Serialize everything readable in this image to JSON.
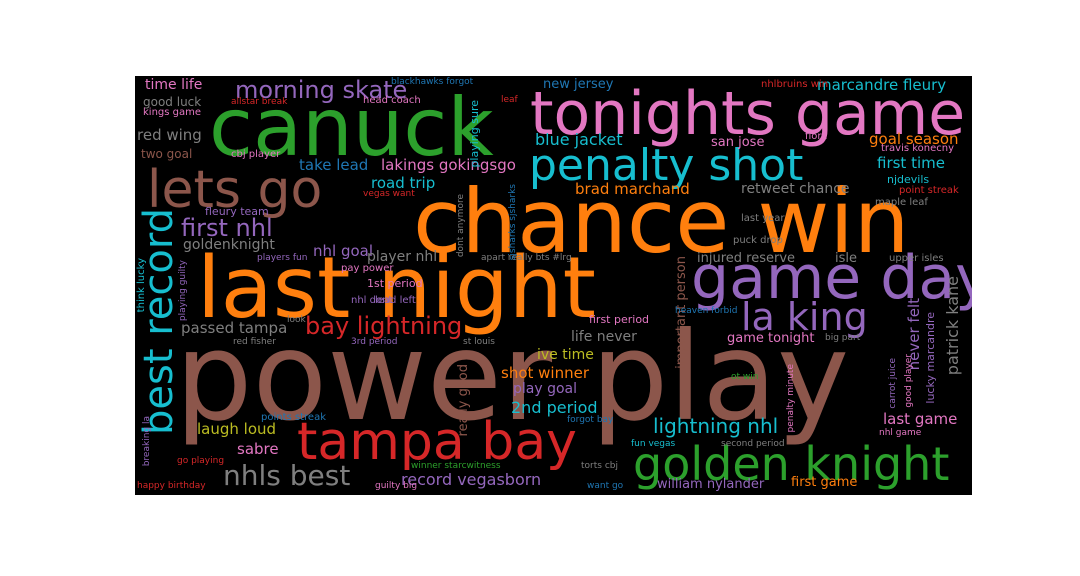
{
  "colors": {
    "blue": "#1f77b4",
    "orange": "#ff7f0e",
    "green": "#2ca02c",
    "red": "#d62728",
    "purple": "#9467bd",
    "brown": "#8c564b",
    "pink": "#e377c2",
    "gray": "#7f7f7f",
    "olive": "#bcbd22",
    "cyan": "#17becf"
  },
  "words": [
    {
      "text": "power play",
      "color": "brown",
      "weight": 1.0
    },
    {
      "text": "chance win",
      "color": "orange",
      "weight": 0.75
    },
    {
      "text": "last night",
      "color": "orange",
      "weight": 0.72
    },
    {
      "text": "canuck",
      "color": "green",
      "weight": 0.68
    },
    {
      "text": "tonights game",
      "color": "pink",
      "weight": 0.55
    },
    {
      "text": "game day",
      "color": "purple",
      "weight": 0.52
    },
    {
      "text": "tampa bay",
      "color": "red",
      "weight": 0.47
    },
    {
      "text": "golden knight",
      "color": "green",
      "weight": 0.46
    },
    {
      "text": "lets go",
      "color": "brown",
      "weight": 0.45
    },
    {
      "text": "best record",
      "color": "cyan",
      "weight": 0.44
    },
    {
      "text": "penalty shot",
      "color": "cyan",
      "weight": 0.42
    },
    {
      "text": "la king",
      "color": "purple",
      "weight": 0.39
    },
    {
      "text": "nhls best",
      "color": "gray",
      "weight": 0.27
    },
    {
      "text": "bay lightning",
      "color": "red",
      "weight": 0.24
    },
    {
      "text": "morning skate",
      "color": "purple",
      "weight": 0.24
    },
    {
      "text": "first nhl",
      "color": "purple",
      "weight": 0.24
    },
    {
      "text": "lightning nhl",
      "color": "cyan",
      "weight": 0.18
    },
    {
      "text": "goal season",
      "color": "orange",
      "weight": 0.14
    },
    {
      "text": "patrick kane",
      "color": "gray",
      "weight": 0.14
    },
    {
      "text": "blue jacket",
      "color": "cyan",
      "weight": 0.14
    },
    {
      "text": "marcandre fleury",
      "color": "cyan",
      "weight": 0.13
    },
    {
      "text": "road trip",
      "color": "cyan",
      "weight": 0.13
    },
    {
      "text": "take lead",
      "color": "blue",
      "weight": 0.13
    },
    {
      "text": "lakings gokingsgo",
      "color": "pink",
      "weight": 0.12
    },
    {
      "text": "record vegasborn",
      "color": "purple",
      "weight": 0.13
    },
    {
      "text": "shot winner",
      "color": "orange",
      "weight": 0.12
    },
    {
      "text": "2nd period",
      "color": "cyan",
      "weight": 0.13
    },
    {
      "text": "passed tampa",
      "color": "gray",
      "weight": 0.12
    },
    {
      "text": "first time",
      "color": "cyan",
      "weight": 0.12
    },
    {
      "text": "last game",
      "color": "pink",
      "weight": 0.12
    },
    {
      "text": "laugh loud",
      "color": "olive",
      "weight": 0.12
    },
    {
      "text": "time life",
      "color": "pink",
      "weight": 0.11
    },
    {
      "text": "red wing",
      "color": "gray",
      "weight": 0.11
    },
    {
      "text": "nhl goal",
      "color": "purple",
      "weight": 0.11
    },
    {
      "text": "sabre",
      "color": "pink",
      "weight": 0.11
    },
    {
      "text": "brad marchand",
      "color": "orange",
      "weight": 0.11
    },
    {
      "text": "retweet chance",
      "color": "gray",
      "weight": 0.11
    },
    {
      "text": "life never",
      "color": "gray",
      "weight": 0.11
    },
    {
      "text": "play goal",
      "color": "purple",
      "weight": 0.11
    },
    {
      "text": "william nylander",
      "color": "purple",
      "weight": 0.1
    },
    {
      "text": "first game",
      "color": "orange",
      "weight": 0.1
    },
    {
      "text": "ive time",
      "color": "olive",
      "weight": 0.1
    },
    {
      "text": "game tonight",
      "color": "pink",
      "weight": 0.1
    },
    {
      "text": "never felt",
      "color": "purple",
      "weight": 0.1
    },
    {
      "text": "player nhl",
      "color": "gray",
      "weight": 0.1
    },
    {
      "text": "goldenknight",
      "color": "gray",
      "weight": 0.1
    },
    {
      "text": "new jersey",
      "color": "blue",
      "weight": 0.09
    },
    {
      "text": "san jose",
      "color": "pink",
      "weight": 0.09
    },
    {
      "text": "injured reserve",
      "color": "gray",
      "weight": 0.09
    },
    {
      "text": "isle",
      "color": "gray",
      "weight": 0.09
    },
    {
      "text": "good luck",
      "color": "gray",
      "weight": 0.09
    },
    {
      "text": "two goal",
      "color": "brown",
      "weight": 0.09
    },
    {
      "text": "really good",
      "color": "brown",
      "weight": 0.09
    },
    {
      "text": "important person",
      "color": "brown",
      "weight": 0.09
    },
    {
      "text": "fleury team",
      "color": "purple",
      "weight": 0.08
    },
    {
      "text": "njdevils",
      "color": "cyan",
      "weight": 0.08
    },
    {
      "text": "1st period",
      "color": "pink",
      "weight": 0.08
    },
    {
      "text": "lucky marcandre",
      "color": "purple",
      "weight": 0.07
    },
    {
      "text": "first period",
      "color": "pink",
      "weight": 0.07
    },
    {
      "text": "kings game",
      "color": "pink",
      "weight": 0.07
    },
    {
      "text": "head coach",
      "color": "pink",
      "weight": 0.07
    },
    {
      "text": "pay power",
      "color": "pink",
      "weight": 0.07
    },
    {
      "text": "nhl dont",
      "color": "purple",
      "weight": 0.07
    },
    {
      "text": "lead left",
      "color": "purple",
      "weight": 0.07
    },
    {
      "text": "points streak",
      "color": "blue",
      "weight": 0.07
    },
    {
      "text": "cbj player",
      "color": "pink",
      "weight": 0.07
    },
    {
      "text": "nhlbruins win",
      "color": "red",
      "weight": 0.07
    },
    {
      "text": "travis konecny",
      "color": "pink",
      "weight": 0.07
    },
    {
      "text": "flore",
      "color": "pink",
      "weight": 0.07
    },
    {
      "text": "point streak",
      "color": "red",
      "weight": 0.07
    },
    {
      "text": "maple leaf",
      "color": "gray",
      "weight": 0.07
    },
    {
      "text": "last year",
      "color": "gray",
      "weight": 0.07
    },
    {
      "text": "puck drop",
      "color": "gray",
      "weight": 0.07
    },
    {
      "text": "upper isles",
      "color": "gray",
      "weight": 0.07
    },
    {
      "text": "blackhawks forgot",
      "color": "blue",
      "weight": 0.07
    },
    {
      "text": "allstar break",
      "color": "red",
      "weight": 0.07
    },
    {
      "text": "leaf",
      "color": "red",
      "weight": 0.07
    },
    {
      "text": "vegas want",
      "color": "red",
      "weight": 0.07
    },
    {
      "text": "players fun",
      "color": "purple",
      "weight": 0.07
    },
    {
      "text": "look",
      "color": "gray",
      "weight": 0.07
    },
    {
      "text": "red fisher",
      "color": "gray",
      "weight": 0.07
    },
    {
      "text": "3rd period",
      "color": "purple",
      "weight": 0.07
    },
    {
      "text": "st louis",
      "color": "gray",
      "weight": 0.07
    },
    {
      "text": "forgot bay",
      "color": "blue",
      "weight": 0.07
    },
    {
      "text": "fun vegas",
      "color": "cyan",
      "weight": 0.07
    },
    {
      "text": "second period",
      "color": "gray",
      "weight": 0.07
    },
    {
      "text": "torts cbj",
      "color": "gray",
      "weight": 0.07
    },
    {
      "text": "want go",
      "color": "blue",
      "weight": 0.07
    },
    {
      "text": "winner starcwitness",
      "color": "green",
      "weight": 0.07
    },
    {
      "text": "go playing",
      "color": "red",
      "weight": 0.07
    },
    {
      "text": "happy birthday",
      "color": "red",
      "weight": 0.07
    },
    {
      "text": "guilty big",
      "color": "pink",
      "weight": 0.07
    },
    {
      "text": "heaven forbid",
      "color": "blue",
      "weight": 0.07
    },
    {
      "text": "big part",
      "color": "gray",
      "weight": 0.07
    },
    {
      "text": "ot win",
      "color": "green",
      "weight": 0.07
    },
    {
      "text": "nhl game",
      "color": "pink",
      "weight": 0.07
    },
    {
      "text": "apart really bts #lrg",
      "color": "gray",
      "weight": 0.07
    },
    {
      "text": "sjsharks sjsharks",
      "color": "blue",
      "weight": 0.07
    },
    {
      "text": "dont anymore",
      "color": "gray",
      "weight": 0.07
    },
    {
      "text": "playing sure",
      "color": "cyan",
      "weight": 0.07
    },
    {
      "text": "think lucky",
      "color": "cyan",
      "weight": 0.07
    },
    {
      "text": "playing guilty",
      "color": "purple",
      "weight": 0.07
    },
    {
      "text": "breaking la",
      "color": "purple",
      "weight": 0.07
    },
    {
      "text": "penalty minute",
      "color": "pink",
      "weight": 0.07
    },
    {
      "text": "carrot juice",
      "color": "purple",
      "weight": 0.07
    },
    {
      "text": "good player",
      "color": "pink",
      "weight": 0.07
    }
  ]
}
